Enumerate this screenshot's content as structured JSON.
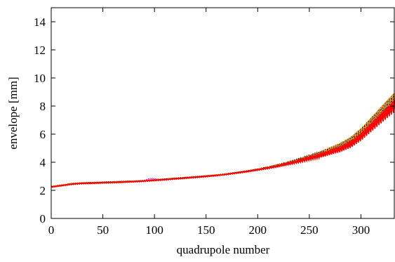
{
  "chart_data": {
    "type": "line",
    "title": "",
    "xlabel": "quadrupole number",
    "ylabel": "envelope [mm]",
    "xlim": [
      0,
      333
    ],
    "ylim": [
      0,
      15
    ],
    "xticks": [
      0,
      50,
      100,
      150,
      200,
      250,
      300
    ],
    "yticks": [
      0,
      2,
      4,
      6,
      8,
      10,
      12,
      14
    ],
    "grid": false,
    "legend": "none",
    "envelope_profile": {
      "x": [
        0,
        10,
        20,
        30,
        40,
        50,
        60,
        70,
        80,
        90,
        100,
        110,
        120,
        130,
        140,
        150,
        160,
        170,
        180,
        190,
        200,
        210,
        220,
        230,
        240,
        250,
        260,
        270,
        280,
        290,
        300,
        310,
        320,
        333
      ],
      "y": [
        2.25,
        2.35,
        2.45,
        2.5,
        2.52,
        2.55,
        2.57,
        2.6,
        2.63,
        2.67,
        2.72,
        2.77,
        2.83,
        2.88,
        2.94,
        3.0,
        3.07,
        3.15,
        3.25,
        3.35,
        3.47,
        3.6,
        3.75,
        3.92,
        4.1,
        4.3,
        4.5,
        4.75,
        5.0,
        5.35,
        5.9,
        6.6,
        7.3,
        8.2
      ]
    },
    "series": [
      {
        "color": "#ff0000",
        "offset": -0.05,
        "osc": 0.22,
        "phase": 0.0,
        "bump": 0.0
      },
      {
        "color": "#00aa00",
        "offset": 0.0,
        "osc": 0.18,
        "phase": 1.0,
        "bump": 0.0
      },
      {
        "color": "#0000ff",
        "offset": 0.05,
        "osc": 0.25,
        "phase": 2.0,
        "bump": 0.0
      },
      {
        "color": "#ff00ff",
        "offset": 0.03,
        "osc": 0.2,
        "phase": 0.5,
        "bump": 0.12
      },
      {
        "color": "#00cccc",
        "offset": 0.06,
        "osc": 0.3,
        "phase": 1.5,
        "bump": 0.0
      },
      {
        "color": "#ffcc00",
        "offset": 0.08,
        "osc": 0.28,
        "phase": 2.5,
        "bump": 0.0
      },
      {
        "color": "#000000",
        "offset": 0.1,
        "osc": 0.24,
        "phase": 3.0,
        "bump": 0.0
      },
      {
        "color": "#ff8800",
        "offset": 0.12,
        "osc": 0.3,
        "phase": 0.8,
        "bump": 0.0
      },
      {
        "color": "#888888",
        "offset": 0.02,
        "osc": 0.2,
        "phase": 1.8,
        "bump": 0.0
      },
      {
        "color": "#ff0000",
        "offset": -0.02,
        "osc": 0.22,
        "phase": 2.2,
        "bump": 0.0
      }
    ]
  }
}
